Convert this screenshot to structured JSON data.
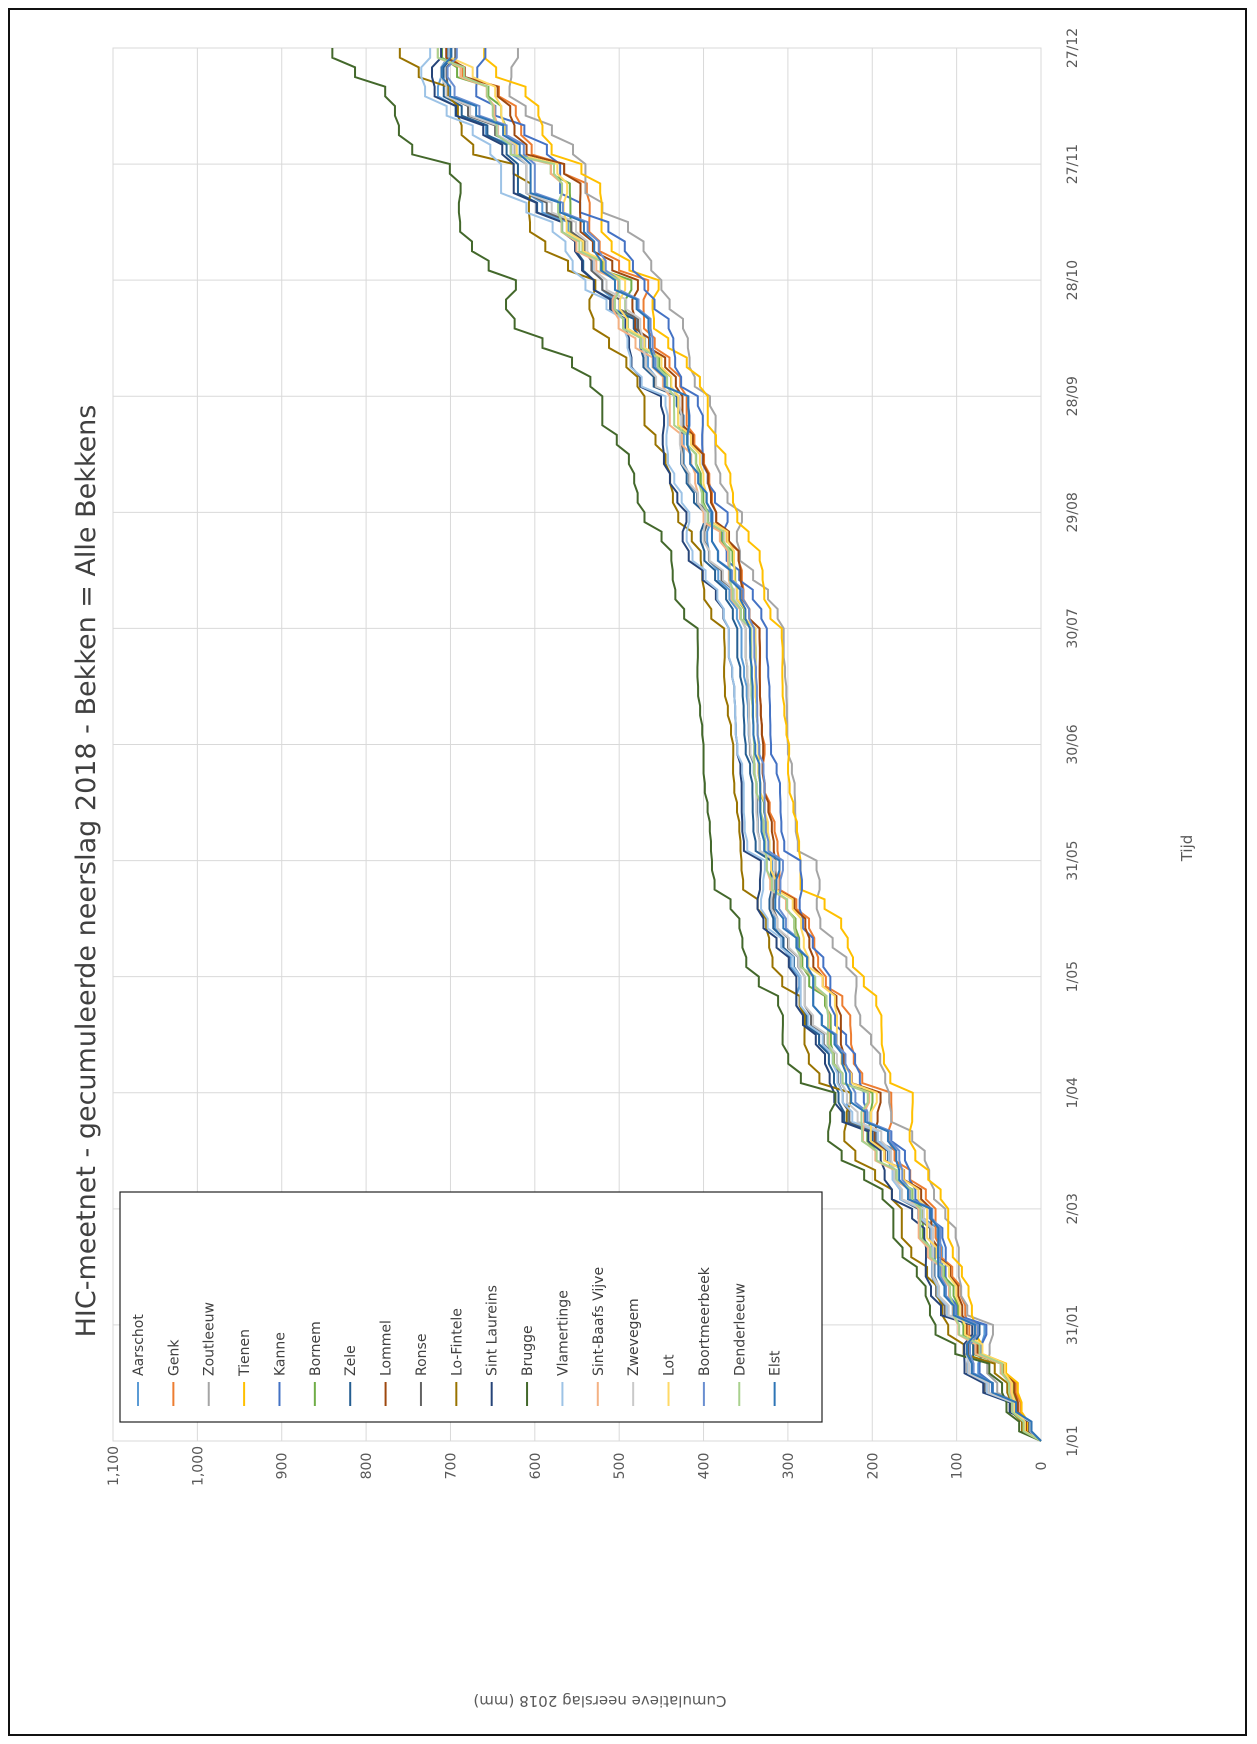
{
  "chart_data": {
    "type": "line",
    "title": "HIC-meetnet - gecumuleerde neerslag 2018 - Bekken = Alle Bekkens",
    "xlabel": "Tijd",
    "ylabel": "Cumulatieve neerslag 2018 (mm)",
    "ylim": [
      0,
      1100
    ],
    "xlim": [
      "1/01",
      "27/12"
    ],
    "y_ticks": [
      "0",
      "100",
      "200",
      "300",
      "400",
      "500",
      "600",
      "700",
      "800",
      "900",
      "1,000",
      "1,100"
    ],
    "x_ticks": [
      "1/01",
      "31/01",
      "2/03",
      "1/04",
      "1/05",
      "31/05",
      "30/06",
      "30/07",
      "29/08",
      "28/09",
      "28/10",
      "27/11",
      "27/12"
    ],
    "grid": true,
    "legend_position": "left",
    "x_dates": [
      "1/01",
      "31/01",
      "2/03",
      "1/04",
      "1/05",
      "31/05",
      "30/06",
      "30/07",
      "29/08",
      "28/09",
      "28/10",
      "27/11",
      "27/12"
    ],
    "series": [
      {
        "name": "Aarschot",
        "color": "#5b9bd5",
        "values": [
          0,
          95,
          140,
          230,
          290,
          330,
          345,
          355,
          400,
          440,
          520,
          610,
          740
        ]
      },
      {
        "name": "Genk",
        "color": "#ed7d31",
        "values": [
          0,
          85,
          125,
          200,
          255,
          310,
          330,
          335,
          385,
          420,
          480,
          580,
          700
        ]
      },
      {
        "name": "Zoutleeuw",
        "color": "#a5a5a5",
        "values": [
          0,
          80,
          115,
          180,
          220,
          285,
          300,
          305,
          365,
          400,
          450,
          540,
          650
        ]
      },
      {
        "name": "Tienen",
        "color": "#ffc000",
        "values": [
          0,
          78,
          110,
          170,
          210,
          285,
          300,
          310,
          360,
          395,
          470,
          560,
          660
        ]
      },
      {
        "name": "Kanne",
        "color": "#4472c4",
        "values": [
          0,
          90,
          135,
          210,
          250,
          300,
          320,
          325,
          380,
          415,
          470,
          570,
          690
        ]
      },
      {
        "name": "Bornem",
        "color": "#70ad47",
        "values": [
          0,
          92,
          140,
          225,
          275,
          320,
          335,
          340,
          395,
          430,
          500,
          600,
          710
        ]
      },
      {
        "name": "Zele",
        "color": "#255e91",
        "values": [
          0,
          100,
          150,
          240,
          285,
          335,
          350,
          360,
          405,
          440,
          530,
          620,
          725
        ]
      },
      {
        "name": "Lommel",
        "color": "#9e480e",
        "values": [
          0,
          88,
          130,
          215,
          260,
          315,
          330,
          335,
          385,
          425,
          490,
          585,
          705
        ]
      },
      {
        "name": "Ronse",
        "color": "#636363",
        "values": [
          0,
          105,
          150,
          235,
          280,
          330,
          345,
          350,
          400,
          440,
          520,
          610,
          720
        ]
      },
      {
        "name": "Lo-Fintele",
        "color": "#997300",
        "values": [
          0,
          110,
          165,
          250,
          310,
          355,
          365,
          380,
          430,
          470,
          540,
          650,
          760
        ]
      },
      {
        "name": "Sint Laureins",
        "color": "#264478",
        "values": [
          0,
          108,
          160,
          245,
          290,
          350,
          360,
          370,
          425,
          460,
          530,
          625,
          735
        ]
      },
      {
        "name": "Brugge",
        "color": "#43682b",
        "values": [
          0,
          125,
          175,
          270,
          340,
          390,
          400,
          410,
          470,
          520,
          640,
          720,
          840
        ]
      },
      {
        "name": "Vlamertinge",
        "color": "#9dc3e6",
        "values": [
          0,
          102,
          150,
          235,
          285,
          345,
          360,
          370,
          420,
          455,
          540,
          640,
          745
        ]
      },
      {
        "name": "Sint-Baafs Vijve",
        "color": "#f4b183",
        "values": [
          0,
          98,
          145,
          225,
          275,
          325,
          340,
          345,
          400,
          440,
          510,
          605,
          715
        ]
      },
      {
        "name": "Zwevegem",
        "color": "#c9c9c9",
        "values": [
          0,
          100,
          148,
          230,
          280,
          330,
          345,
          350,
          400,
          440,
          515,
          610,
          720
        ]
      },
      {
        "name": "Lot",
        "color": "#ffd966",
        "values": [
          0,
          90,
          135,
          215,
          265,
          320,
          335,
          340,
          390,
          430,
          500,
          600,
          700
        ]
      },
      {
        "name": "Boortmeerbeek",
        "color": "#698ed0",
        "values": [
          0,
          93,
          138,
          220,
          270,
          320,
          335,
          340,
          390,
          430,
          500,
          600,
          710
        ]
      },
      {
        "name": "Denderleeuw",
        "color": "#a9d18e",
        "values": [
          0,
          97,
          143,
          225,
          275,
          325,
          340,
          345,
          395,
          435,
          505,
          605,
          715
        ]
      },
      {
        "name": "Elst",
        "color": "#2e75b6",
        "values": [
          0,
          95,
          140,
          225,
          270,
          325,
          340,
          345,
          390,
          430,
          505,
          605,
          715
        ]
      }
    ]
  }
}
